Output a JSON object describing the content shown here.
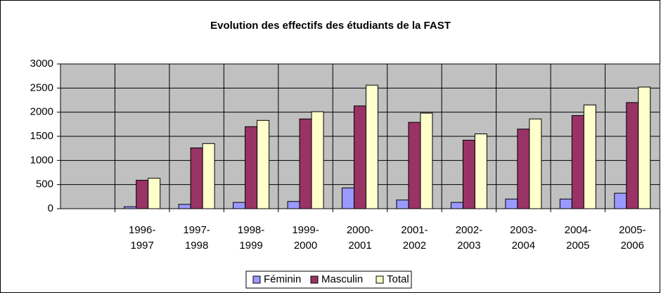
{
  "chart_data": {
    "type": "bar",
    "title": "Evolution des effectifs des étudiants de la FAST",
    "categories": [
      null,
      "1996-1997",
      "1997-1998",
      "1998-1999",
      "1999-2000",
      "2000-2001",
      "2001-2002",
      "2002-2003",
      "2003-2004",
      "2004-2005",
      "2005-2006"
    ],
    "series": [
      {
        "name": "Féminin",
        "color": "#9999ff",
        "values": [
          null,
          40,
          90,
          130,
          150,
          430,
          180,
          130,
          200,
          200,
          320
        ]
      },
      {
        "name": "Masculin",
        "color": "#993366",
        "values": [
          null,
          590,
          1260,
          1700,
          1860,
          2130,
          1790,
          1420,
          1650,
          1930,
          2200
        ]
      },
      {
        "name": "Total",
        "color": "#ffffcc",
        "values": [
          null,
          630,
          1350,
          1830,
          2010,
          2560,
          1980,
          1550,
          1860,
          2150,
          2520
        ]
      }
    ],
    "ylim": [
      0,
      3000
    ],
    "yticks": [
      0,
      500,
      1000,
      1500,
      2000,
      2500,
      3000
    ],
    "grid": true,
    "legend": "bottom"
  }
}
